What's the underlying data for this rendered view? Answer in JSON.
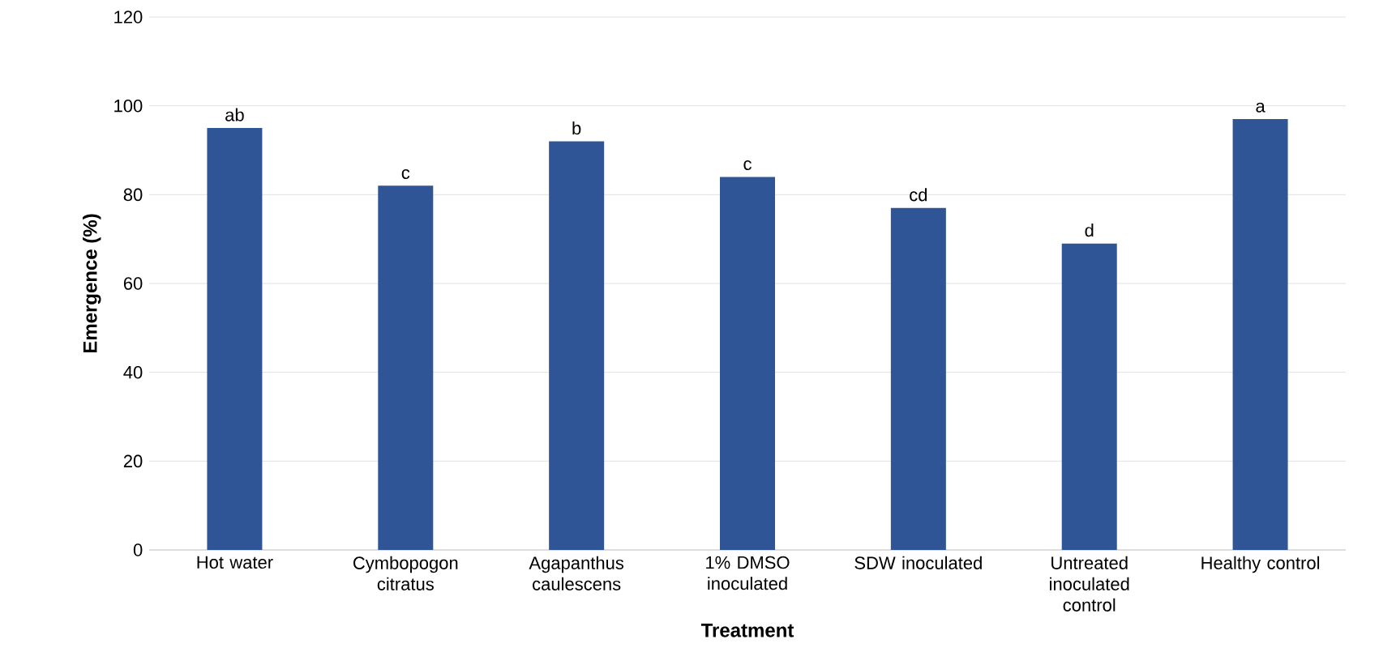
{
  "chart_data": {
    "type": "bar",
    "xlabel": "Treatment",
    "ylabel": "Emergence (%)",
    "categories": [
      "Hot water",
      "Cymbopogon citratus",
      "Agapanthus caulescens",
      "1% DMSO inoculated",
      "SDW inoculated",
      "Untreated inoculated control",
      "Healthy control"
    ],
    "values": [
      95,
      82,
      92,
      84,
      77,
      69,
      97
    ],
    "color": "#2f5597",
    "ylim": [
      0,
      120
    ],
    "yticks": [
      0,
      20,
      40,
      60,
      80,
      100,
      120
    ],
    "grid": "y",
    "annotations": [
      {
        "text": "ab",
        "x": "Hot water",
        "y": 95
      },
      {
        "text": "c",
        "x": "Cymbopogon citratus",
        "y": 82
      },
      {
        "text": "b",
        "x": "Agapanthus caulescens",
        "y": 92
      },
      {
        "text": "c",
        "x": "1% DMSO inoculated",
        "y": 84
      },
      {
        "text": "cd",
        "x": "SDW inoculated",
        "y": 77
      },
      {
        "text": "d",
        "x": "Untreated inoculated control",
        "y": 69
      },
      {
        "text": "a",
        "x": "Healthy control",
        "y": 97
      }
    ]
  }
}
